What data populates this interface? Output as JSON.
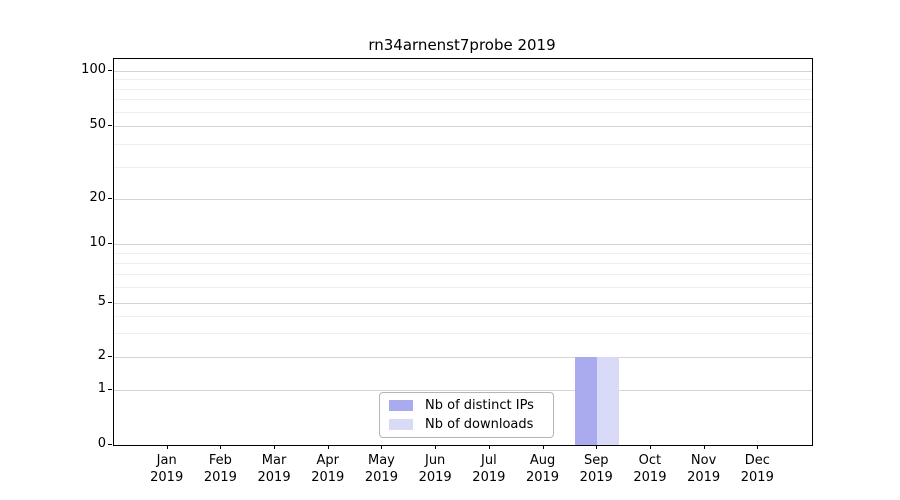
{
  "chart_data": {
    "type": "bar",
    "title": "rn34arnenst7probe 2019",
    "x_categories": [
      "Jan",
      "Feb",
      "Mar",
      "Apr",
      "May",
      "Jun",
      "Jul",
      "Aug",
      "Sep",
      "Oct",
      "Nov",
      "Dec"
    ],
    "x_year": "2019",
    "series": [
      {
        "name": "Nb of distinct IPs",
        "color": "#aaaaee",
        "values": [
          0,
          0,
          0,
          0,
          0,
          0,
          0,
          0,
          2,
          0,
          0,
          0
        ]
      },
      {
        "name": "Nb of downloads",
        "color": "#d9d9f8",
        "values": [
          0,
          0,
          0,
          0,
          0,
          0,
          0,
          0,
          2,
          0,
          0,
          0
        ]
      }
    ],
    "y_scale": "symlog",
    "y_ticks": [
      0,
      1,
      2,
      5,
      10,
      20,
      50,
      100
    ],
    "y_minor_ticks": [
      3,
      4,
      6,
      7,
      8,
      9,
      30,
      40,
      60,
      70,
      80,
      90
    ],
    "ylim": [
      0,
      110
    ],
    "grid": "horizontal",
    "grid_major_color": "#d4d4d4",
    "grid_minor_color": "#efefef",
    "legend_position": "lower center inside"
  }
}
